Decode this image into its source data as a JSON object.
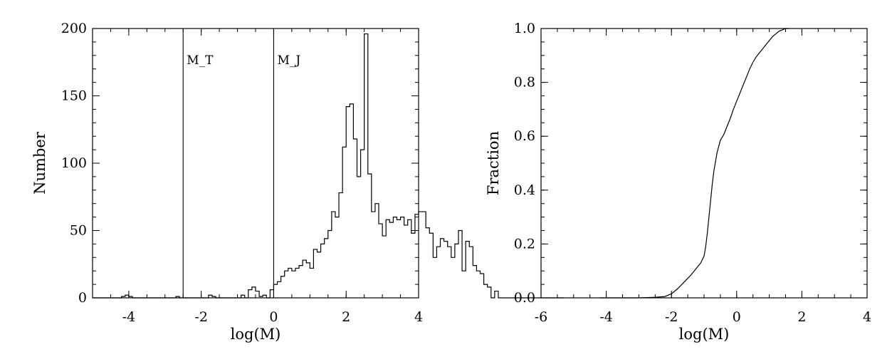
{
  "chart_data": [
    {
      "type": "histogram",
      "xlabel": "log(M)",
      "ylabel": "Number",
      "xlim": [
        -5,
        4
      ],
      "ylim": [
        0,
        200
      ],
      "xticks": [
        -4,
        -2,
        0,
        2,
        4
      ],
      "yticks": [
        0,
        50,
        100,
        150,
        200
      ],
      "x_tick_labels": [
        "-4",
        "-2",
        "0",
        "2",
        "4"
      ],
      "y_tick_labels": [
        "0",
        "50",
        "100",
        "150",
        "200"
      ],
      "bin_width": 0.1,
      "bin_start": -5.0,
      "counts": [
        0,
        0,
        0,
        0,
        0,
        0,
        0,
        0,
        1,
        2,
        1,
        0,
        0,
        0,
        0,
        0,
        0,
        0,
        0,
        0,
        0,
        0,
        0,
        1,
        0,
        0,
        0,
        0,
        0,
        0,
        0,
        0,
        2,
        1,
        0,
        0,
        0,
        0,
        0,
        0,
        0,
        2,
        0,
        6,
        8,
        5,
        1,
        2,
        0,
        6,
        10,
        12,
        16,
        20,
        22,
        20,
        22,
        24,
        28,
        26,
        22,
        36,
        34,
        40,
        44,
        50,
        64,
        60,
        78,
        112,
        142,
        144,
        118,
        90,
        110,
        196,
        92,
        64,
        70,
        55,
        46,
        58,
        56,
        60,
        58,
        60,
        54,
        58,
        48,
        62,
        64,
        64,
        52,
        48,
        30,
        38,
        44,
        42,
        38,
        30,
        40,
        50,
        20,
        42,
        38,
        24,
        20,
        18,
        10,
        8,
        0,
        5,
        0,
        0,
        0,
        0,
        0,
        0,
        0,
        0,
        0,
        0,
        0,
        0,
        0,
        0,
        0,
        0,
        0,
        0
      ],
      "vertical_lines": [
        {
          "x": -2.5,
          "label": "M_T"
        },
        {
          "x": 0.0,
          "label": "M_J"
        }
      ]
    },
    {
      "type": "line",
      "xlabel": "log(M)",
      "ylabel": "Fraction",
      "xlim": [
        -6,
        4
      ],
      "ylim": [
        0,
        1
      ],
      "xticks": [
        -6,
        -4,
        -2,
        0,
        2,
        4
      ],
      "yticks": [
        0.0,
        0.2,
        0.4,
        0.6,
        0.8,
        1.0
      ],
      "x_tick_labels": [
        "-6",
        "-4",
        "-2",
        "0",
        "2",
        "4"
      ],
      "y_tick_labels": [
        "0.0",
        "0.2",
        "0.4",
        "0.6",
        "0.8",
        "1.0"
      ],
      "series": [
        {
          "x": [
            -4.2,
            -3.0,
            -2.5,
            -2.2,
            -2.0,
            -1.8,
            -1.6,
            -1.4,
            -1.2,
            -1.1,
            -1.0,
            -0.95,
            -0.9,
            -0.85,
            -0.8,
            -0.75,
            -0.7,
            -0.6,
            -0.5,
            -0.4,
            -0.3,
            -0.2,
            -0.1,
            0.0,
            0.1,
            0.2,
            0.3,
            0.4,
            0.5,
            0.6,
            0.7,
            0.8,
            0.9,
            1.0,
            1.1,
            1.2,
            1.3,
            1.4,
            1.5,
            1.6
          ],
          "y": [
            0.0,
            0.0,
            0.002,
            0.005,
            0.015,
            0.035,
            0.06,
            0.085,
            0.115,
            0.13,
            0.155,
            0.19,
            0.24,
            0.3,
            0.36,
            0.42,
            0.47,
            0.54,
            0.585,
            0.605,
            0.635,
            0.665,
            0.7,
            0.73,
            0.76,
            0.79,
            0.82,
            0.85,
            0.875,
            0.895,
            0.91,
            0.925,
            0.94,
            0.955,
            0.97,
            0.98,
            0.99,
            0.995,
            1.0,
            1.0
          ]
        }
      ]
    }
  ]
}
